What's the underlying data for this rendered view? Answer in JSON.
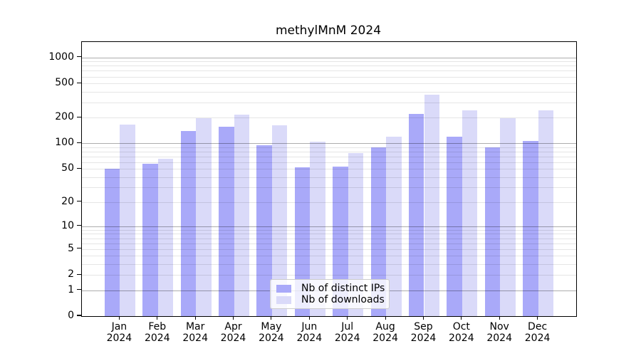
{
  "chart_data": {
    "type": "bar",
    "title": "methylMnM 2024",
    "categories": [
      "Jan",
      "Feb",
      "Mar",
      "Apr",
      "May",
      "Jun",
      "Jul",
      "Aug",
      "Sep",
      "Oct",
      "Nov",
      "Dec"
    ],
    "category_year": "2024",
    "series": [
      {
        "name": "Nb of distinct IPs",
        "color": "#a9a9f9",
        "values": [
          50,
          58,
          140,
          157,
          95,
          52,
          53,
          89,
          220,
          120,
          90,
          107
        ]
      },
      {
        "name": "Nb of downloads",
        "color": "#dadaf9",
        "values": [
          167,
          66,
          197,
          215,
          164,
          105,
          77,
          119,
          370,
          245,
          198,
          245
        ]
      }
    ],
    "xlabel": "",
    "ylabel": "",
    "yscale": "log1p",
    "ylim": [
      0,
      1510
    ],
    "yticks": [
      0,
      1,
      2,
      5,
      10,
      20,
      50,
      100,
      200,
      500,
      1000
    ],
    "grid": "both",
    "legend_position": "lower-center"
  }
}
